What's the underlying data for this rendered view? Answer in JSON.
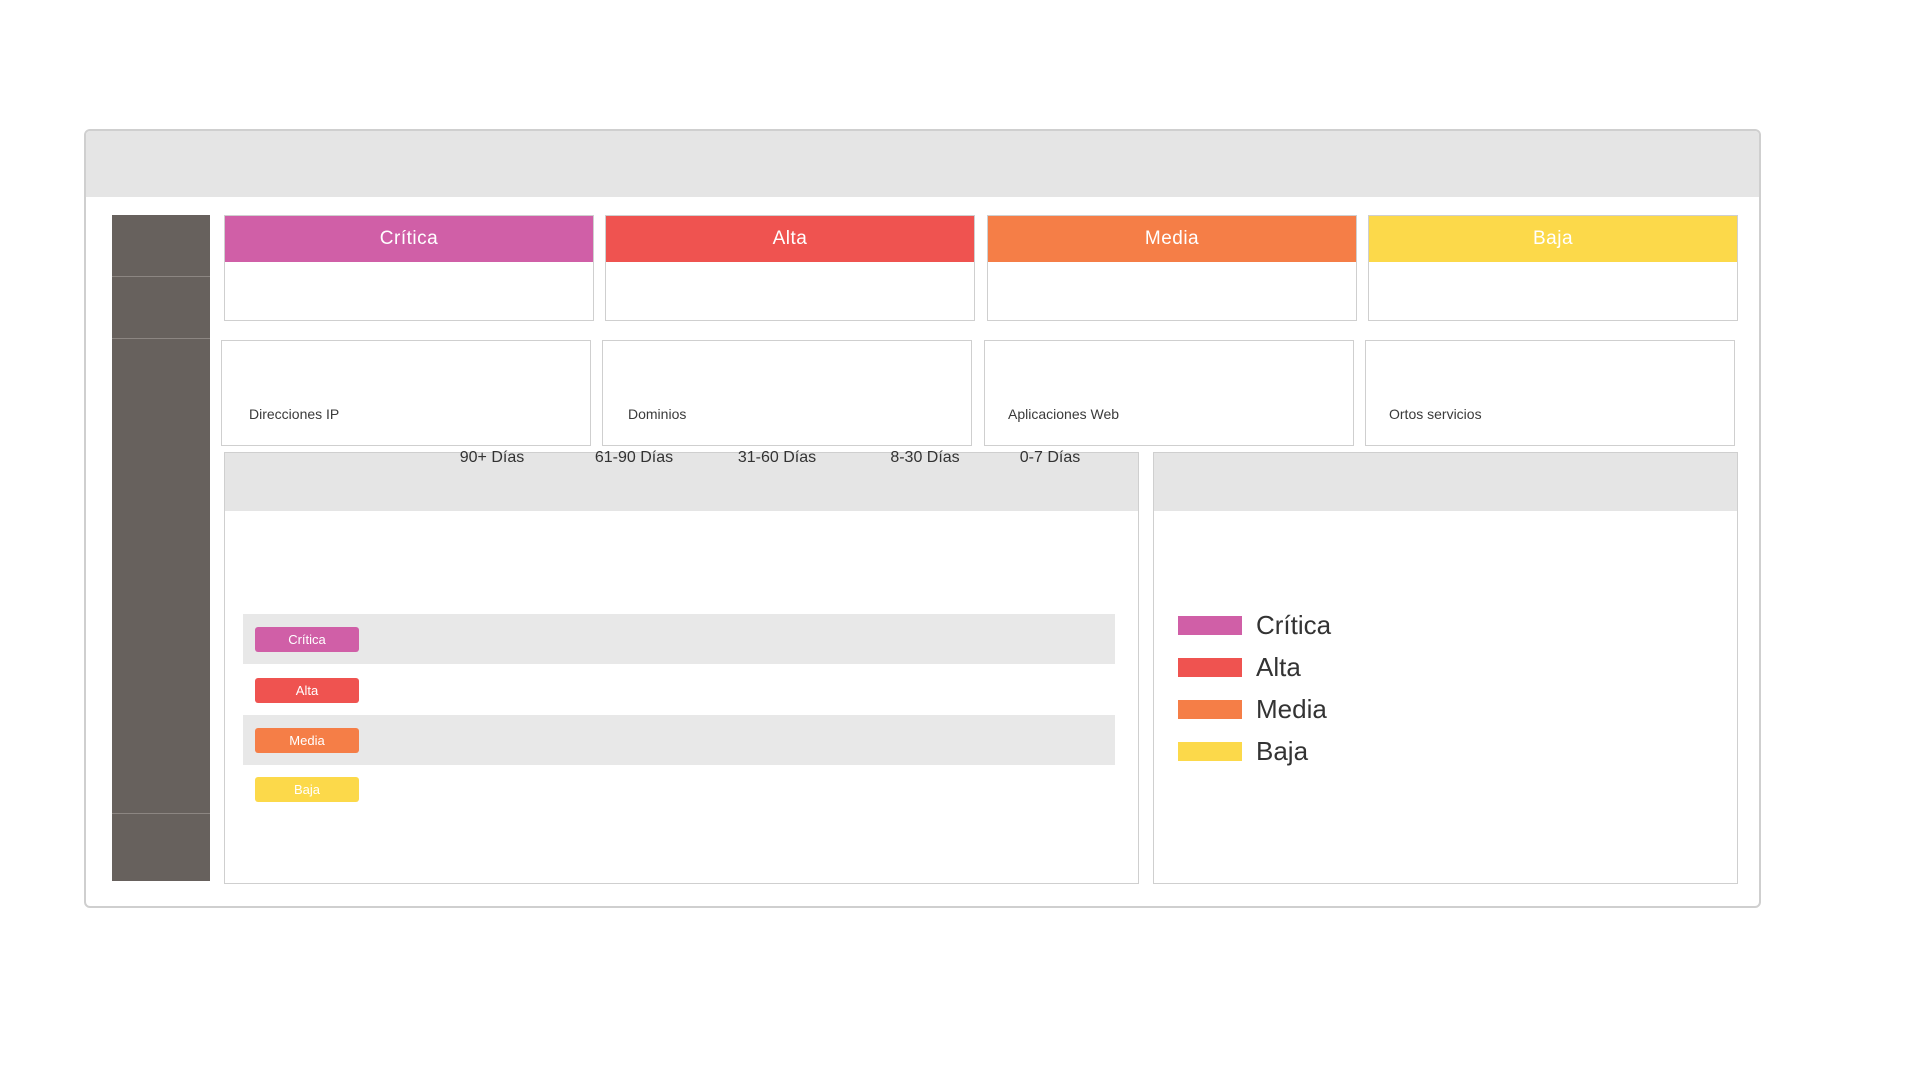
{
  "colors": {
    "critica": "#d05fa7",
    "alta": "#ef5350",
    "media": "#f57e47",
    "baja": "#fcd94a"
  },
  "severity_cards": [
    {
      "label": "Crítica",
      "color": "#d05fa7"
    },
    {
      "label": "Alta",
      "color": "#ef5350"
    },
    {
      "label": "Media",
      "color": "#f57e47"
    },
    {
      "label": "Baja",
      "color": "#fcd94a"
    }
  ],
  "asset_cards": [
    {
      "label": "Direcciones IP"
    },
    {
      "label": "Dominios"
    },
    {
      "label": "Aplicaciones Web"
    },
    {
      "label": "Ortos servicios"
    }
  ],
  "age_table": {
    "columns": [
      "90+ Días",
      "61-90 Días",
      "31-60 Días",
      "8-30 Días",
      "0-7 Días"
    ],
    "rows": [
      {
        "label": "Crítica",
        "color": "#d05fa7"
      },
      {
        "label": "Alta",
        "color": "#ef5350"
      },
      {
        "label": "Media",
        "color": "#f57e47"
      },
      {
        "label": "Baja",
        "color": "#fcd94a"
      }
    ]
  },
  "legend": {
    "items": [
      {
        "label": "Crítica",
        "color": "#d05fa7"
      },
      {
        "label": "Alta",
        "color": "#ef5350"
      },
      {
        "label": "Media",
        "color": "#f57e47"
      },
      {
        "label": "Baja",
        "color": "#fcd94a"
      }
    ]
  }
}
